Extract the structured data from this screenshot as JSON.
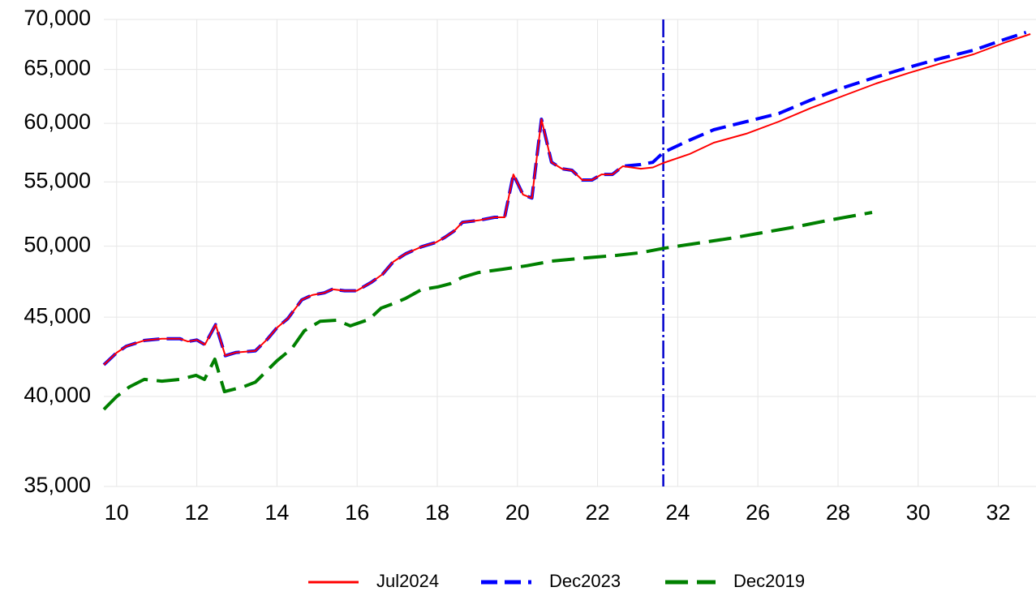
{
  "chart_data": {
    "type": "line",
    "log_y": true,
    "grid": true,
    "legend": "bottom",
    "xlim": [
      9.68,
      32.94
    ],
    "xticks": [
      10,
      12,
      14,
      16,
      18,
      20,
      22,
      24,
      26,
      28,
      30,
      32
    ],
    "ylim": [
      35000,
      70000
    ],
    "yticks": [
      {
        "value": 35000,
        "label": "35,000"
      },
      {
        "value": 40000,
        "label": "40,000"
      },
      {
        "value": 45000,
        "label": "45,000"
      },
      {
        "value": 50000,
        "label": "50,000"
      },
      {
        "value": 55000,
        "label": "55,000"
      },
      {
        "value": 60000,
        "label": "60,000"
      },
      {
        "value": 65000,
        "label": "65,000"
      },
      {
        "value": 70000,
        "label": "70,000"
      }
    ],
    "vline": {
      "x": 23.64,
      "color": "#0000cc"
    },
    "series": [
      {
        "name": "Jul2024",
        "color": "#ff0000",
        "x": [
          9.68,
          10.0,
          10.24,
          10.69,
          11.13,
          11.58,
          11.78,
          12.0,
          12.2,
          12.47,
          12.71,
          12.97,
          13.46,
          13.77,
          14.0,
          14.27,
          14.62,
          14.88,
          15.18,
          15.38,
          15.69,
          15.99,
          16.36,
          16.64,
          16.9,
          17.21,
          17.61,
          17.96,
          18.18,
          18.42,
          18.63,
          19.03,
          19.43,
          19.68,
          19.9,
          20.14,
          20.36,
          20.6,
          20.85,
          21.11,
          21.36,
          21.62,
          21.86,
          22.1,
          22.37,
          22.63,
          23.08,
          23.38,
          23.64,
          24.29,
          24.9,
          25.71,
          26.52,
          27.33,
          28.14,
          28.95,
          29.76,
          30.57,
          31.38,
          32.19,
          32.8
        ],
        "values": [
          41930,
          42690,
          43100,
          43470,
          43580,
          43580,
          43400,
          43500,
          43200,
          44500,
          42500,
          42700,
          42800,
          43580,
          44300,
          44900,
          46170,
          46500,
          46650,
          46900,
          46800,
          46800,
          47400,
          47970,
          48850,
          49440,
          49960,
          50270,
          50640,
          51130,
          51810,
          51950,
          52190,
          52190,
          55620,
          53970,
          53700,
          60370,
          56630,
          56090,
          55960,
          55160,
          55160,
          55620,
          55620,
          56300,
          56090,
          56200,
          56570,
          57320,
          58300,
          59080,
          60150,
          61390,
          62510,
          63650,
          64650,
          65590,
          66470,
          67680,
          68500
        ]
      },
      {
        "name": "Dec2023",
        "color": "#0000ff",
        "x": [
          9.68,
          10.0,
          10.24,
          10.69,
          11.13,
          11.58,
          11.78,
          12.0,
          12.2,
          12.47,
          12.71,
          12.97,
          13.46,
          13.77,
          14.0,
          14.27,
          14.62,
          14.88,
          15.18,
          15.38,
          15.69,
          15.99,
          16.36,
          16.64,
          16.9,
          17.21,
          17.61,
          17.96,
          18.18,
          18.42,
          18.63,
          19.03,
          19.43,
          19.68,
          19.9,
          20.14,
          20.36,
          20.6,
          20.85,
          21.11,
          21.36,
          21.62,
          21.86,
          22.1,
          22.37,
          22.63,
          23.08,
          23.38,
          23.64,
          24.29,
          24.9,
          25.71,
          26.52,
          27.33,
          28.14,
          28.95,
          29.76,
          30.57,
          31.38,
          32.19,
          32.69
        ],
        "values": [
          41930,
          42690,
          43100,
          43470,
          43580,
          43580,
          43400,
          43500,
          43200,
          44500,
          42500,
          42700,
          42800,
          43580,
          44300,
          44900,
          46170,
          46500,
          46650,
          46900,
          46800,
          46800,
          47400,
          47970,
          48850,
          49440,
          49960,
          50270,
          50640,
          51130,
          51810,
          51950,
          52190,
          52190,
          55620,
          53970,
          53700,
          60370,
          56630,
          56090,
          55960,
          55160,
          55160,
          55620,
          55620,
          56300,
          56440,
          56630,
          57460,
          58510,
          59430,
          60150,
          60880,
          62130,
          63270,
          64270,
          65200,
          66070,
          66870,
          68010,
          68670
        ]
      },
      {
        "name": "Dec2019",
        "color": "#008000",
        "x": [
          9.68,
          10.0,
          10.32,
          10.69,
          11.13,
          11.58,
          11.98,
          12.19,
          12.45,
          12.69,
          13.16,
          13.46,
          14.0,
          14.37,
          14.68,
          15.08,
          15.49,
          15.83,
          16.3,
          16.6,
          16.9,
          17.21,
          17.61,
          18.02,
          18.32,
          18.63,
          19.03,
          19.64,
          20.24,
          20.85,
          21.66,
          22.47,
          23.08,
          23.64,
          24.49,
          25.3,
          26.11,
          26.92,
          27.73,
          28.85
        ],
        "values": [
          39240,
          40000,
          40580,
          41030,
          40920,
          41030,
          41280,
          41030,
          42280,
          40290,
          40580,
          40860,
          42180,
          42950,
          44090,
          44730,
          44790,
          44420,
          44850,
          45610,
          45910,
          46270,
          46880,
          47070,
          47290,
          47750,
          48080,
          48320,
          48570,
          48900,
          49130,
          49320,
          49520,
          49840,
          50220,
          50580,
          51010,
          51440,
          51940,
          52570
        ]
      }
    ]
  }
}
